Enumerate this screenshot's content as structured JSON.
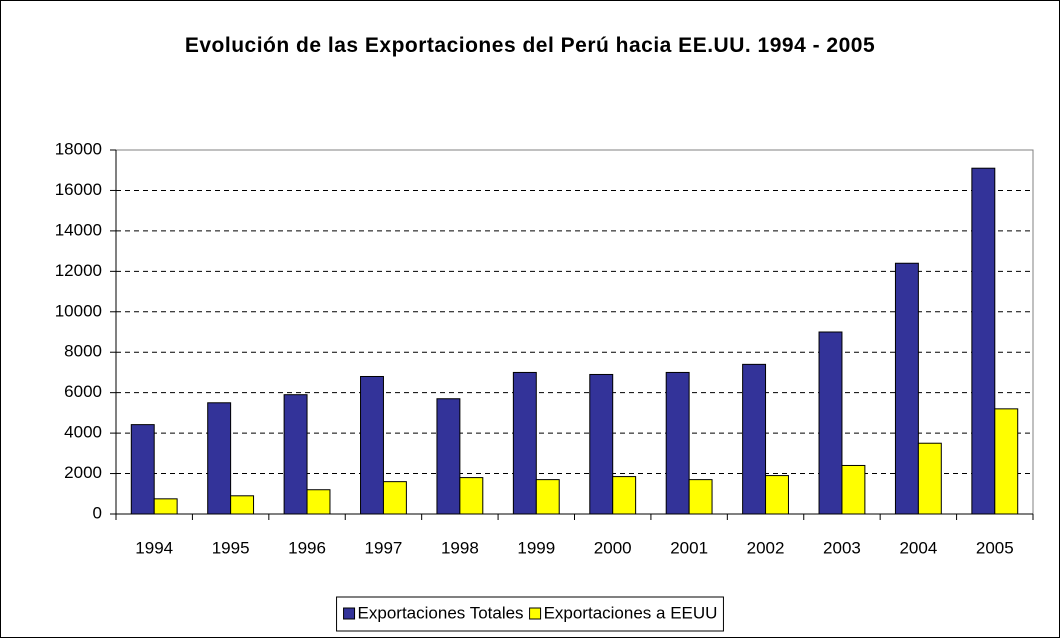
{
  "chart_data": {
    "type": "bar",
    "title": "Evolución de las Exportaciones del Perú hacia EE.UU. 1994 - 2005",
    "categories": [
      "1994",
      "1995",
      "1996",
      "1997",
      "1998",
      "1999",
      "2000",
      "2001",
      "2002",
      "2003",
      "2004",
      "2005"
    ],
    "series": [
      {
        "name": "Exportaciones Totales",
        "color": "#333399",
        "values": [
          4420,
          5500,
          5900,
          6800,
          5700,
          7000,
          6900,
          7000,
          7400,
          9000,
          12400,
          17100
        ]
      },
      {
        "name": "Exportaciones a EEUU",
        "color": "#ffff00",
        "values": [
          750,
          900,
          1200,
          1600,
          1800,
          1700,
          1850,
          1700,
          1900,
          2400,
          3500,
          5200
        ]
      }
    ],
    "ylim": [
      0,
      18000
    ],
    "yticks": [
      0,
      2000,
      4000,
      6000,
      8000,
      10000,
      12000,
      14000,
      16000,
      18000
    ],
    "grid": true,
    "legend": "bottom"
  }
}
